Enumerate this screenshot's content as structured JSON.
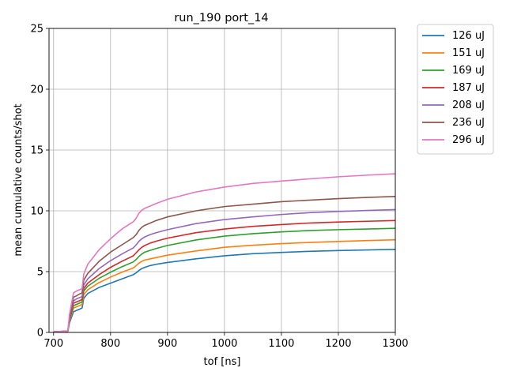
{
  "chart_data": {
    "type": "line",
    "title": "run_190 port_14",
    "xlabel": "tof [ns]",
    "ylabel": "mean cumulative counts/shot",
    "xlim": [
      692,
      1300
    ],
    "ylim": [
      0,
      25
    ],
    "xticks": [
      700,
      800,
      900,
      1000,
      1100,
      1200,
      1300
    ],
    "yticks": [
      0,
      5,
      10,
      15,
      20,
      25
    ],
    "grid": true,
    "legend_position": "outside-right",
    "x": [
      700,
      725,
      728,
      735,
      740,
      745,
      750,
      753,
      760,
      780,
      800,
      820,
      840,
      845,
      850,
      855,
      860,
      870,
      880,
      900,
      950,
      1000,
      1050,
      1100,
      1150,
      1200,
      1250,
      1300
    ],
    "series": [
      {
        "name": "126 uJ",
        "color": "#1f77b4",
        "values": [
          0.05,
          0.1,
          0.8,
          1.7,
          1.8,
          1.9,
          2.0,
          2.8,
          3.2,
          3.7,
          4.05,
          4.4,
          4.75,
          4.9,
          5.1,
          5.25,
          5.35,
          5.5,
          5.6,
          5.75,
          6.05,
          6.3,
          6.47,
          6.58,
          6.67,
          6.73,
          6.78,
          6.83
        ]
      },
      {
        "name": "151 uJ",
        "color": "#ff7f0e",
        "values": [
          0.05,
          0.1,
          0.9,
          2.0,
          2.1,
          2.2,
          2.3,
          3.1,
          3.5,
          4.1,
          4.55,
          4.95,
          5.3,
          5.5,
          5.7,
          5.85,
          5.95,
          6.05,
          6.15,
          6.35,
          6.7,
          7.0,
          7.17,
          7.3,
          7.4,
          7.48,
          7.55,
          7.62
        ]
      },
      {
        "name": "169 uJ",
        "color": "#2ca02c",
        "values": [
          0.05,
          0.1,
          1.0,
          2.2,
          2.3,
          2.4,
          2.5,
          3.4,
          3.8,
          4.45,
          4.95,
          5.4,
          5.8,
          6.0,
          6.25,
          6.45,
          6.6,
          6.75,
          6.9,
          7.15,
          7.6,
          7.92,
          8.12,
          8.27,
          8.38,
          8.45,
          8.5,
          8.56
        ]
      },
      {
        "name": "187 uJ",
        "color": "#d62728",
        "values": [
          0.05,
          0.1,
          1.1,
          2.4,
          2.5,
          2.6,
          2.7,
          3.6,
          4.05,
          4.75,
          5.35,
          5.85,
          6.3,
          6.55,
          6.8,
          7.0,
          7.15,
          7.35,
          7.5,
          7.75,
          8.2,
          8.5,
          8.72,
          8.87,
          9.0,
          9.08,
          9.14,
          9.2
        ]
      },
      {
        "name": "208 uJ",
        "color": "#9467bd",
        "values": [
          0.05,
          0.1,
          1.2,
          2.6,
          2.75,
          2.85,
          2.95,
          3.9,
          4.4,
          5.25,
          5.9,
          6.45,
          6.95,
          7.2,
          7.5,
          7.7,
          7.85,
          8.05,
          8.2,
          8.45,
          8.95,
          9.28,
          9.5,
          9.7,
          9.85,
          9.95,
          10.03,
          10.1
        ]
      },
      {
        "name": "236 uJ",
        "color": "#8c564b",
        "values": [
          0.05,
          0.1,
          1.3,
          2.9,
          3.0,
          3.15,
          3.25,
          4.3,
          4.85,
          5.85,
          6.6,
          7.2,
          7.8,
          8.05,
          8.4,
          8.65,
          8.8,
          9.0,
          9.2,
          9.5,
          10.0,
          10.35,
          10.55,
          10.75,
          10.88,
          11.0,
          11.1,
          11.18
        ]
      },
      {
        "name": "296 uJ",
        "color": "#e377c2",
        "values": [
          0.05,
          0.1,
          1.5,
          3.25,
          3.4,
          3.5,
          3.6,
          4.8,
          5.6,
          6.8,
          7.7,
          8.5,
          9.1,
          9.4,
          9.8,
          10.05,
          10.2,
          10.4,
          10.6,
          10.95,
          11.55,
          11.95,
          12.25,
          12.45,
          12.63,
          12.8,
          12.93,
          13.05
        ]
      }
    ]
  }
}
